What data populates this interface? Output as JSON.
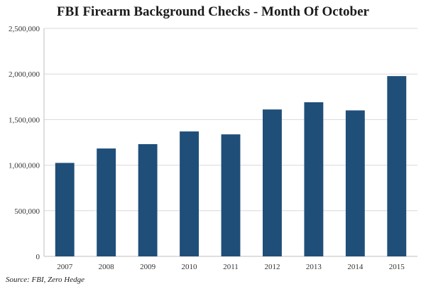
{
  "chart_data": {
    "type": "bar",
    "title": "FBI Firearm Background Checks - Month Of October",
    "source": "Source: FBI, Zero Hedge",
    "categories": [
      "2007",
      "2008",
      "2009",
      "2010",
      "2011",
      "2012",
      "2013",
      "2014",
      "2015"
    ],
    "values": [
      1025000,
      1183000,
      1231000,
      1370000,
      1338000,
      1611000,
      1690000,
      1601000,
      1977000
    ],
    "ylim": [
      0,
      2500000
    ],
    "yticks": [
      0,
      500000,
      1000000,
      1500000,
      2000000,
      2500000
    ],
    "ytick_labels": [
      "0",
      "500,000",
      "1,000,000",
      "1,500,000",
      "2,000,000",
      "2,500,000"
    ],
    "grid": true,
    "colors": {
      "bar": "#1f4e79",
      "grid": "#d9d9d9",
      "axis": "#bfbfbf",
      "text": "#333333"
    }
  }
}
